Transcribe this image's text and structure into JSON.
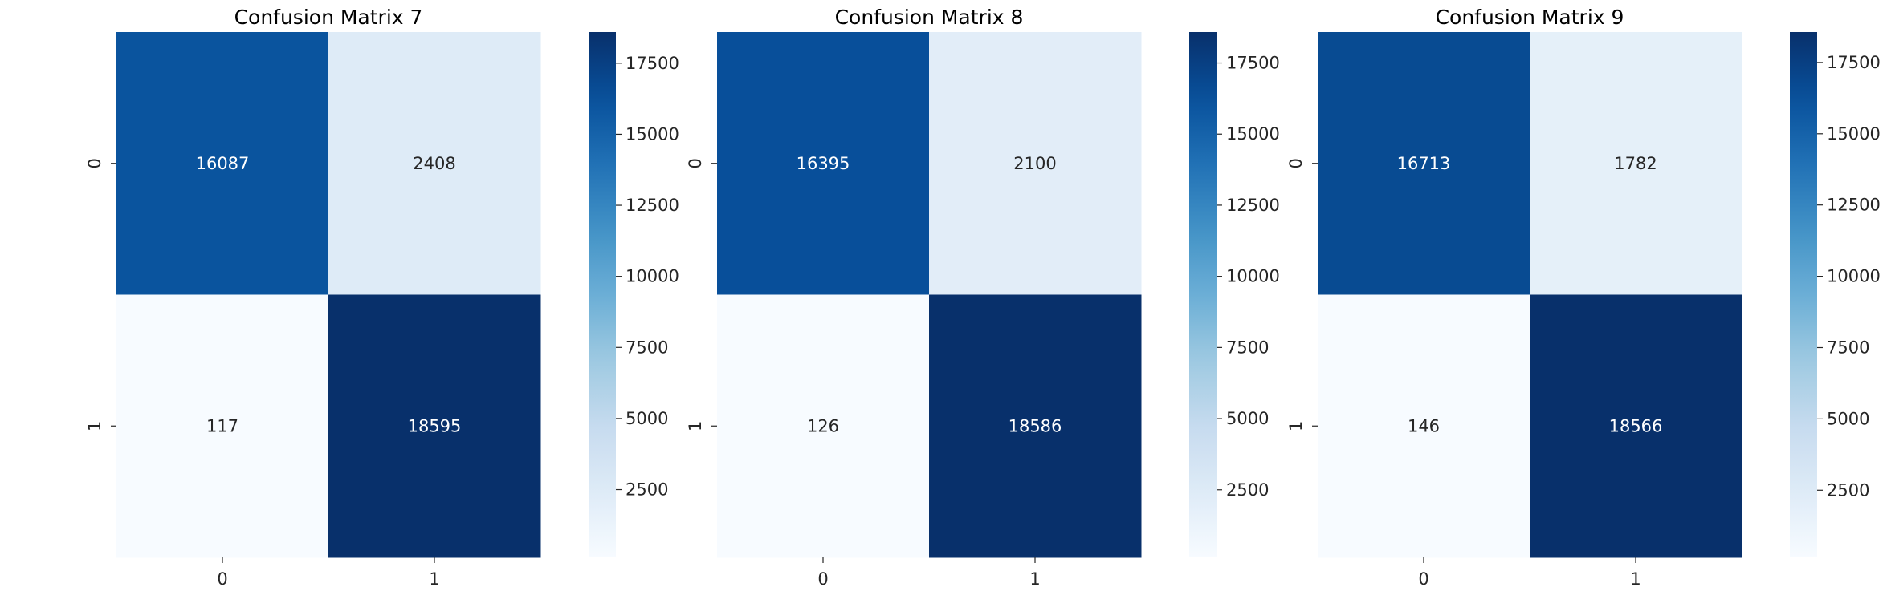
{
  "chart_data": [
    {
      "type": "heatmap",
      "title": "Confusion Matrix 7",
      "x_categories": [
        "0",
        "1"
      ],
      "y_categories": [
        "0",
        "1"
      ],
      "values": [
        [
          16087,
          2408
        ],
        [
          117,
          18595
        ]
      ],
      "colormap": "Blues",
      "colorbar": {
        "ticks": [
          2500,
          5000,
          7500,
          10000,
          12500,
          15000,
          17500
        ],
        "vmin": 117,
        "vmax": 18595
      },
      "xlabel": "",
      "ylabel": ""
    },
    {
      "type": "heatmap",
      "title": "Confusion Matrix 8",
      "x_categories": [
        "0",
        "1"
      ],
      "y_categories": [
        "0",
        "1"
      ],
      "values": [
        [
          16395,
          2100
        ],
        [
          126,
          18586
        ]
      ],
      "colormap": "Blues",
      "colorbar": {
        "ticks": [
          2500,
          5000,
          7500,
          10000,
          12500,
          15000,
          17500
        ],
        "vmin": 126,
        "vmax": 18586
      },
      "xlabel": "",
      "ylabel": ""
    },
    {
      "type": "heatmap",
      "title": "Confusion Matrix 9",
      "x_categories": [
        "0",
        "1"
      ],
      "y_categories": [
        "0",
        "1"
      ],
      "values": [
        [
          16713,
          1782
        ],
        [
          146,
          18566
        ]
      ],
      "colormap": "Blues",
      "colorbar": {
        "ticks": [
          2500,
          5000,
          7500,
          10000,
          12500,
          15000,
          17500
        ],
        "vmin": 146,
        "vmax": 18566
      },
      "xlabel": "",
      "ylabel": ""
    }
  ]
}
